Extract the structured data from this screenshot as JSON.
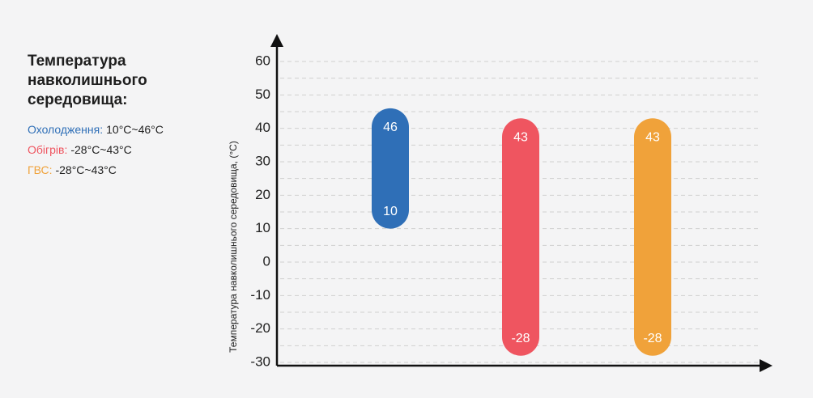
{
  "chart_data": {
    "type": "range-bar",
    "title": "Температура навколишнього середовища:",
    "y_label": "Температура навколишнього середовища, (°C)",
    "ylim": [
      -30,
      60
    ],
    "yticks": [
      -30,
      -20,
      -10,
      0,
      10,
      20,
      30,
      40,
      50,
      60
    ],
    "minor_yticks": [
      -25,
      -15,
      -5,
      5,
      15,
      25,
      35,
      45,
      55
    ],
    "grid": true,
    "series": [
      {
        "name": "Охолодження:",
        "color": "#2f6fb7",
        "low": 10,
        "high": 46,
        "range_label": "10°C~46°C"
      },
      {
        "name": "Обігрів:",
        "color": "#ef5560",
        "low": -28,
        "high": 43,
        "range_label": "-28°C~43°C"
      },
      {
        "name": "ГВС:",
        "color": "#f0a23a",
        "low": -28,
        "high": 43,
        "range_label": "-28°C~43°C"
      }
    ]
  }
}
